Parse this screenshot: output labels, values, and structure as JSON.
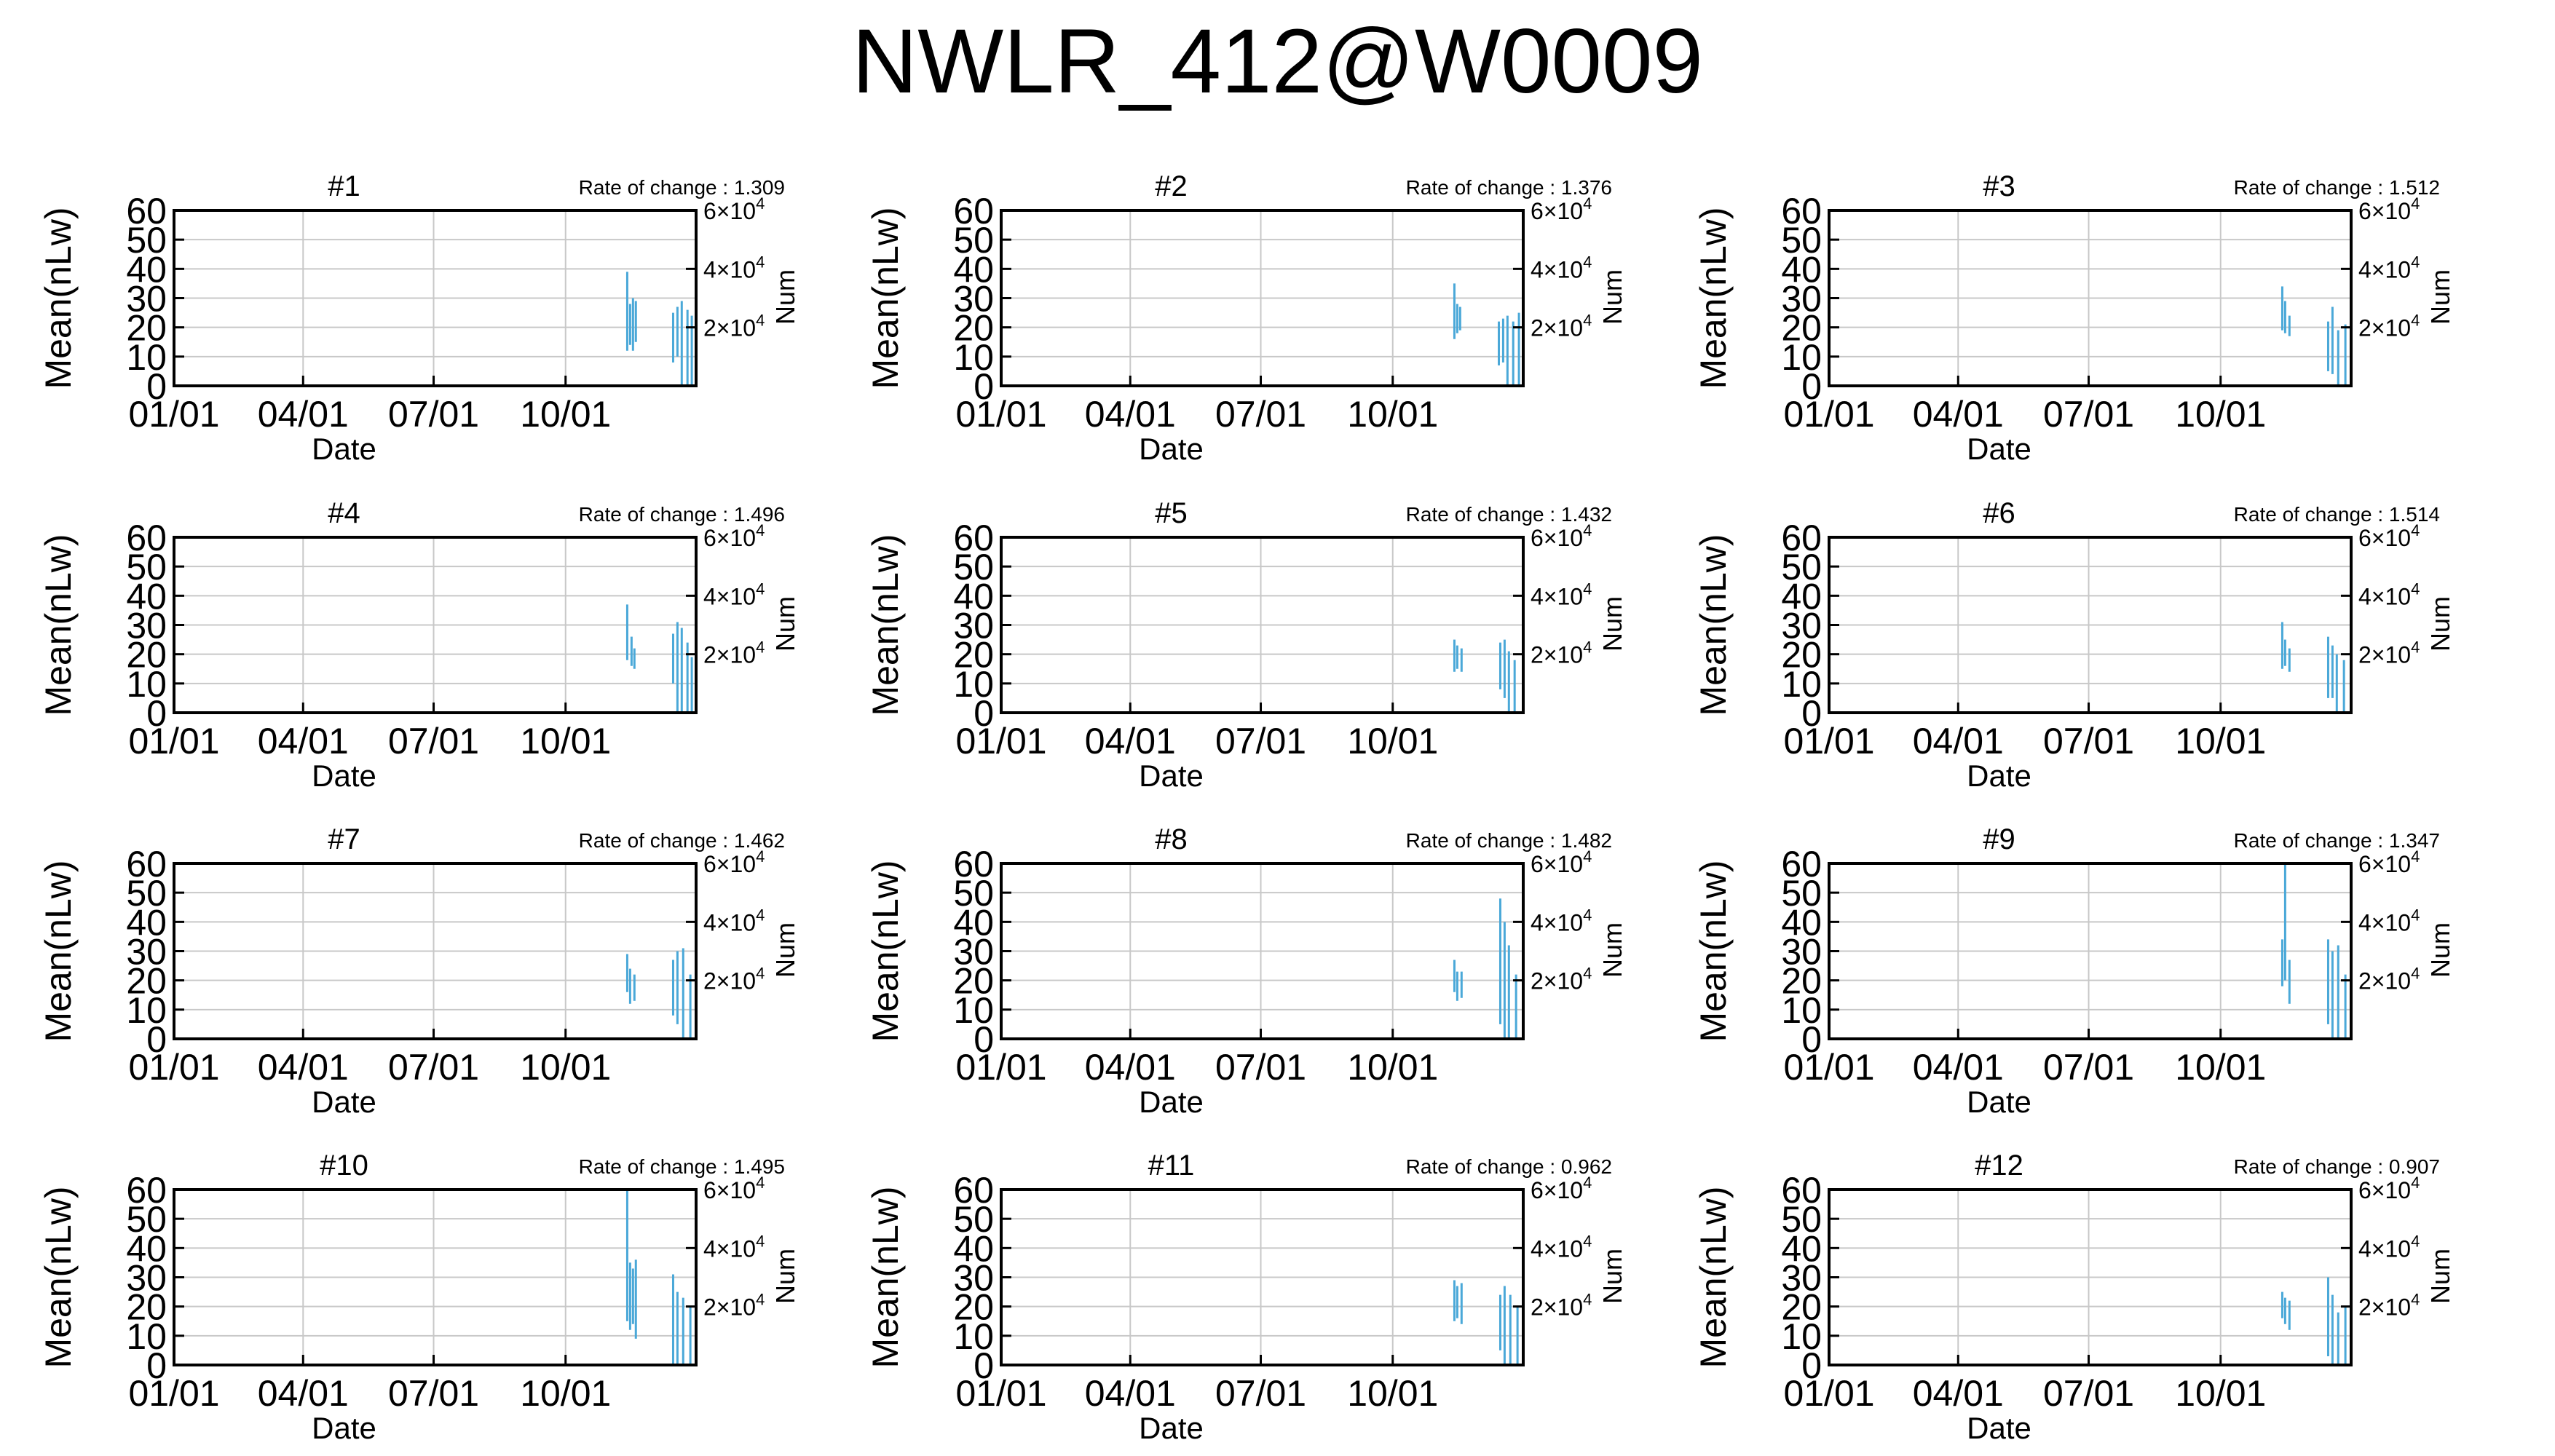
{
  "title": "NWLR_412@W0009",
  "colors": {
    "series": "#4aa8d8",
    "grid": "#c8c8c8",
    "axis": "#000000"
  },
  "chart_data": [
    {
      "type": "bar",
      "title": "#1",
      "rate_label": "Rate of change : 1.309",
      "xlabel": "Date",
      "ylabel": "Mean(nLw)",
      "y2label": "Num",
      "xlim": [
        "01/01",
        "12/31"
      ],
      "xticks": [
        "01/01",
        "04/01",
        "07/01",
        "10/01"
      ],
      "ylim": [
        0,
        60
      ],
      "yticks": [
        "0",
        "10",
        "20",
        "30",
        "40",
        "50",
        "60"
      ],
      "y2ticks": [
        {
          "base": "2×10",
          "exp": "4",
          "value": 20000
        },
        {
          "base": "4×10",
          "exp": "4",
          "value": 40000
        },
        {
          "base": "6×10",
          "exp": "4",
          "value": 60000
        }
      ],
      "y2lim": [
        0,
        60000
      ],
      "grid": true,
      "segments": [
        {
          "x": "2019-11-13",
          "low": 12,
          "high": 39
        },
        {
          "x": "2019-11-15",
          "low": 14,
          "high": 28
        },
        {
          "x": "2019-11-17",
          "low": 12,
          "high": 30
        },
        {
          "x": "2019-11-19",
          "low": 15,
          "high": 29
        },
        {
          "x": "2019-12-15",
          "low": 8,
          "high": 25
        },
        {
          "x": "2019-12-18",
          "low": 10,
          "high": 27
        },
        {
          "x": "2019-12-21",
          "low": 0,
          "high": 29
        },
        {
          "x": "2019-12-25",
          "low": 0,
          "high": 26
        },
        {
          "x": "2019-12-28",
          "low": 0,
          "high": 24
        }
      ]
    },
    {
      "type": "bar",
      "title": "#2",
      "rate_label": "Rate of change : 1.376",
      "xlabel": "Date",
      "ylabel": "Mean(nLw)",
      "y2label": "Num",
      "xlim": [
        "01/01",
        "12/31"
      ],
      "xticks": [
        "01/01",
        "04/01",
        "07/01",
        "10/01"
      ],
      "ylim": [
        0,
        60
      ],
      "yticks": [
        "0",
        "10",
        "20",
        "30",
        "40",
        "50",
        "60"
      ],
      "y2ticks": [
        {
          "base": "2×10",
          "exp": "4",
          "value": 20000
        },
        {
          "base": "4×10",
          "exp": "4",
          "value": 40000
        },
        {
          "base": "6×10",
          "exp": "4",
          "value": 60000
        }
      ],
      "y2lim": [
        0,
        60000
      ],
      "grid": true,
      "segments": [
        {
          "x": "2019-11-13",
          "low": 16,
          "high": 35
        },
        {
          "x": "2019-11-15",
          "low": 18,
          "high": 28
        },
        {
          "x": "2019-11-17",
          "low": 19,
          "high": 27
        },
        {
          "x": "2019-12-14",
          "low": 7,
          "high": 22
        },
        {
          "x": "2019-12-17",
          "low": 8,
          "high": 23
        },
        {
          "x": "2019-12-20",
          "low": 0,
          "high": 24
        },
        {
          "x": "2019-12-24",
          "low": 0,
          "high": 22
        },
        {
          "x": "2019-12-28",
          "low": 0,
          "high": 25
        }
      ]
    },
    {
      "type": "bar",
      "title": "#3",
      "rate_label": "Rate of change : 1.512",
      "xlabel": "Date",
      "ylabel": "Mean(nLw)",
      "y2label": "Num",
      "xlim": [
        "01/01",
        "12/31"
      ],
      "xticks": [
        "01/01",
        "04/01",
        "07/01",
        "10/01"
      ],
      "ylim": [
        0,
        60
      ],
      "yticks": [
        "0",
        "10",
        "20",
        "30",
        "40",
        "50",
        "60"
      ],
      "y2ticks": [
        {
          "base": "2×10",
          "exp": "4",
          "value": 20000
        },
        {
          "base": "4×10",
          "exp": "4",
          "value": 40000
        },
        {
          "base": "6×10",
          "exp": "4",
          "value": 60000
        }
      ],
      "y2lim": [
        0,
        60000
      ],
      "grid": true,
      "segments": [
        {
          "x": "2019-11-13",
          "low": 19,
          "high": 34
        },
        {
          "x": "2019-11-15",
          "low": 18,
          "high": 29
        },
        {
          "x": "2019-11-18",
          "low": 17,
          "high": 24
        },
        {
          "x": "2019-12-15",
          "low": 5,
          "high": 22
        },
        {
          "x": "2019-12-18",
          "low": 4,
          "high": 27
        },
        {
          "x": "2019-12-22",
          "low": 0,
          "high": 19
        },
        {
          "x": "2019-12-27",
          "low": 0,
          "high": 21
        }
      ]
    },
    {
      "type": "bar",
      "title": "#4",
      "rate_label": "Rate of change : 1.496",
      "xlabel": "Date",
      "ylabel": "Mean(nLw)",
      "y2label": "Num",
      "xlim": [
        "01/01",
        "12/31"
      ],
      "xticks": [
        "01/01",
        "04/01",
        "07/01",
        "10/01"
      ],
      "ylim": [
        0,
        60
      ],
      "yticks": [
        "0",
        "10",
        "20",
        "30",
        "40",
        "50",
        "60"
      ],
      "y2ticks": [
        {
          "base": "2×10",
          "exp": "4",
          "value": 20000
        },
        {
          "base": "4×10",
          "exp": "4",
          "value": 40000
        },
        {
          "base": "6×10",
          "exp": "4",
          "value": 60000
        }
      ],
      "y2lim": [
        0,
        60000
      ],
      "grid": true,
      "segments": [
        {
          "x": "2019-11-13",
          "low": 18,
          "high": 37
        },
        {
          "x": "2019-11-16",
          "low": 16,
          "high": 26
        },
        {
          "x": "2019-11-18",
          "low": 15,
          "high": 22
        },
        {
          "x": "2019-12-15",
          "low": 10,
          "high": 27
        },
        {
          "x": "2019-12-18",
          "low": 0,
          "high": 31
        },
        {
          "x": "2019-12-21",
          "low": 0,
          "high": 29
        },
        {
          "x": "2019-12-25",
          "low": 0,
          "high": 24
        },
        {
          "x": "2019-12-28",
          "low": 0,
          "high": 19
        }
      ]
    },
    {
      "type": "bar",
      "title": "#5",
      "rate_label": "Rate of change : 1.432",
      "xlabel": "Date",
      "ylabel": "Mean(nLw)",
      "y2label": "Num",
      "xlim": [
        "01/01",
        "12/31"
      ],
      "xticks": [
        "01/01",
        "04/01",
        "07/01",
        "10/01"
      ],
      "ylim": [
        0,
        60
      ],
      "yticks": [
        "0",
        "10",
        "20",
        "30",
        "40",
        "50",
        "60"
      ],
      "y2ticks": [
        {
          "base": "2×10",
          "exp": "4",
          "value": 20000
        },
        {
          "base": "4×10",
          "exp": "4",
          "value": 40000
        },
        {
          "base": "6×10",
          "exp": "4",
          "value": 60000
        }
      ],
      "y2lim": [
        0,
        60000
      ],
      "grid": true,
      "segments": [
        {
          "x": "2019-11-13",
          "low": 14,
          "high": 25
        },
        {
          "x": "2019-11-15",
          "low": 15,
          "high": 23
        },
        {
          "x": "2019-11-18",
          "low": 14,
          "high": 22
        },
        {
          "x": "2019-12-15",
          "low": 8,
          "high": 24
        },
        {
          "x": "2019-12-18",
          "low": 5,
          "high": 25
        },
        {
          "x": "2019-12-21",
          "low": 0,
          "high": 21
        },
        {
          "x": "2019-12-25",
          "low": 0,
          "high": 18
        }
      ]
    },
    {
      "type": "bar",
      "title": "#6",
      "rate_label": "Rate of change : 1.514",
      "xlabel": "Date",
      "ylabel": "Mean(nLw)",
      "y2label": "Num",
      "xlim": [
        "01/01",
        "12/31"
      ],
      "xticks": [
        "01/01",
        "04/01",
        "07/01",
        "10/01"
      ],
      "ylim": [
        0,
        60
      ],
      "yticks": [
        "0",
        "10",
        "20",
        "30",
        "40",
        "50",
        "60"
      ],
      "y2ticks": [
        {
          "base": "2×10",
          "exp": "4",
          "value": 20000
        },
        {
          "base": "4×10",
          "exp": "4",
          "value": 40000
        },
        {
          "base": "6×10",
          "exp": "4",
          "value": 60000
        }
      ],
      "y2lim": [
        0,
        60000
      ],
      "grid": true,
      "segments": [
        {
          "x": "2019-11-13",
          "low": 15,
          "high": 31
        },
        {
          "x": "2019-11-15",
          "low": 16,
          "high": 25
        },
        {
          "x": "2019-11-18",
          "low": 14,
          "high": 22
        },
        {
          "x": "2019-12-15",
          "low": 5,
          "high": 26
        },
        {
          "x": "2019-12-18",
          "low": 5,
          "high": 23
        },
        {
          "x": "2019-12-21",
          "low": 0,
          "high": 20
        },
        {
          "x": "2019-12-26",
          "low": 0,
          "high": 18
        }
      ]
    },
    {
      "type": "bar",
      "title": "#7",
      "rate_label": "Rate of change : 1.462",
      "xlabel": "Date",
      "ylabel": "Mean(nLw)",
      "y2label": "Num",
      "xlim": [
        "01/01",
        "12/31"
      ],
      "xticks": [
        "01/01",
        "04/01",
        "07/01",
        "10/01"
      ],
      "ylim": [
        0,
        60
      ],
      "yticks": [
        "0",
        "10",
        "20",
        "30",
        "40",
        "50",
        "60"
      ],
      "y2ticks": [
        {
          "base": "2×10",
          "exp": "4",
          "value": 20000
        },
        {
          "base": "4×10",
          "exp": "4",
          "value": 40000
        },
        {
          "base": "6×10",
          "exp": "4",
          "value": 60000
        }
      ],
      "y2lim": [
        0,
        60000
      ],
      "grid": true,
      "segments": [
        {
          "x": "2019-11-13",
          "low": 16,
          "high": 29
        },
        {
          "x": "2019-11-15",
          "low": 12,
          "high": 24
        },
        {
          "x": "2019-11-18",
          "low": 13,
          "high": 22
        },
        {
          "x": "2019-12-15",
          "low": 8,
          "high": 27
        },
        {
          "x": "2019-12-18",
          "low": 5,
          "high": 30
        },
        {
          "x": "2019-12-22",
          "low": 0,
          "high": 31
        },
        {
          "x": "2019-12-27",
          "low": 0,
          "high": 22
        }
      ]
    },
    {
      "type": "bar",
      "title": "#8",
      "rate_label": "Rate of change : 1.482",
      "xlabel": "Date",
      "ylabel": "Mean(nLw)",
      "y2label": "Num",
      "xlim": [
        "01/01",
        "12/31"
      ],
      "xticks": [
        "01/01",
        "04/01",
        "07/01",
        "10/01"
      ],
      "ylim": [
        0,
        60
      ],
      "yticks": [
        "0",
        "10",
        "20",
        "30",
        "40",
        "50",
        "60"
      ],
      "y2ticks": [
        {
          "base": "2×10",
          "exp": "4",
          "value": 20000
        },
        {
          "base": "4×10",
          "exp": "4",
          "value": 40000
        },
        {
          "base": "6×10",
          "exp": "4",
          "value": 60000
        }
      ],
      "y2lim": [
        0,
        60000
      ],
      "grid": true,
      "segments": [
        {
          "x": "2019-11-13",
          "low": 16,
          "high": 27
        },
        {
          "x": "2019-11-15",
          "low": 13,
          "high": 23
        },
        {
          "x": "2019-11-18",
          "low": 14,
          "high": 23
        },
        {
          "x": "2019-12-15",
          "low": 5,
          "high": 48
        },
        {
          "x": "2019-12-18",
          "low": 0,
          "high": 40
        },
        {
          "x": "2019-12-21",
          "low": 0,
          "high": 32
        },
        {
          "x": "2019-12-26",
          "low": 0,
          "high": 22
        }
      ]
    },
    {
      "type": "bar",
      "title": "#9",
      "rate_label": "Rate of change : 1.347",
      "xlabel": "Date",
      "ylabel": "Mean(nLw)",
      "y2label": "Num",
      "xlim": [
        "01/01",
        "12/31"
      ],
      "xticks": [
        "01/01",
        "04/01",
        "07/01",
        "10/01"
      ],
      "ylim": [
        0,
        60
      ],
      "yticks": [
        "0",
        "10",
        "20",
        "30",
        "40",
        "50",
        "60"
      ],
      "y2ticks": [
        {
          "base": "2×10",
          "exp": "4",
          "value": 20000
        },
        {
          "base": "4×10",
          "exp": "4",
          "value": 40000
        },
        {
          "base": "6×10",
          "exp": "4",
          "value": 60000
        }
      ],
      "y2lim": [
        0,
        60000
      ],
      "grid": true,
      "segments": [
        {
          "x": "2019-11-13",
          "low": 18,
          "high": 34
        },
        {
          "x": "2019-11-15",
          "low": 20,
          "high": 60
        },
        {
          "x": "2019-11-18",
          "low": 12,
          "high": 27
        },
        {
          "x": "2019-12-15",
          "low": 5,
          "high": 34
        },
        {
          "x": "2019-12-18",
          "low": 0,
          "high": 30
        },
        {
          "x": "2019-12-22",
          "low": 0,
          "high": 32
        },
        {
          "x": "2019-12-27",
          "low": 0,
          "high": 22
        }
      ]
    },
    {
      "type": "bar",
      "title": "#10",
      "rate_label": "Rate of change : 1.495",
      "xlabel": "Date",
      "ylabel": "Mean(nLw)",
      "y2label": "Num",
      "xlim": [
        "01/01",
        "12/31"
      ],
      "xticks": [
        "01/01",
        "04/01",
        "07/01",
        "10/01"
      ],
      "ylim": [
        0,
        60
      ],
      "yticks": [
        "0",
        "10",
        "20",
        "30",
        "40",
        "50",
        "60"
      ],
      "y2ticks": [
        {
          "base": "2×10",
          "exp": "4",
          "value": 20000
        },
        {
          "base": "4×10",
          "exp": "4",
          "value": 40000
        },
        {
          "base": "6×10",
          "exp": "4",
          "value": 60000
        }
      ],
      "y2lim": [
        0,
        60000
      ],
      "grid": true,
      "segments": [
        {
          "x": "2019-11-13",
          "low": 15,
          "high": 60
        },
        {
          "x": "2019-11-15",
          "low": 12,
          "high": 35
        },
        {
          "x": "2019-11-17",
          "low": 14,
          "high": 33
        },
        {
          "x": "2019-11-19",
          "low": 9,
          "high": 36
        },
        {
          "x": "2019-12-15",
          "low": 0,
          "high": 31
        },
        {
          "x": "2019-12-18",
          "low": 0,
          "high": 25
        },
        {
          "x": "2019-12-22",
          "low": 0,
          "high": 23
        },
        {
          "x": "2019-12-27",
          "low": 0,
          "high": 20
        }
      ]
    },
    {
      "type": "bar",
      "title": "#11",
      "rate_label": "Rate of change : 0.962",
      "xlabel": "Date",
      "ylabel": "Mean(nLw)",
      "y2label": "Num",
      "xlim": [
        "01/01",
        "12/31"
      ],
      "xticks": [
        "01/01",
        "04/01",
        "07/01",
        "10/01"
      ],
      "ylim": [
        0,
        60
      ],
      "yticks": [
        "0",
        "10",
        "20",
        "30",
        "40",
        "50",
        "60"
      ],
      "y2ticks": [
        {
          "base": "2×10",
          "exp": "4",
          "value": 20000
        },
        {
          "base": "4×10",
          "exp": "4",
          "value": 40000
        },
        {
          "base": "6×10",
          "exp": "4",
          "value": 60000
        }
      ],
      "y2lim": [
        0,
        60000
      ],
      "grid": true,
      "segments": [
        {
          "x": "2019-11-13",
          "low": 15,
          "high": 29
        },
        {
          "x": "2019-11-15",
          "low": 16,
          "high": 27
        },
        {
          "x": "2019-11-18",
          "low": 14,
          "high": 28
        },
        {
          "x": "2019-12-15",
          "low": 5,
          "high": 24
        },
        {
          "x": "2019-12-18",
          "low": 0,
          "high": 27
        },
        {
          "x": "2019-12-22",
          "low": 0,
          "high": 24
        },
        {
          "x": "2019-12-27",
          "low": 0,
          "high": 20
        }
      ]
    },
    {
      "type": "bar",
      "title": "#12",
      "rate_label": "Rate of change : 0.907",
      "xlabel": "Date",
      "ylabel": "Mean(nLw)",
      "y2label": "Num",
      "xlim": [
        "01/01",
        "12/31"
      ],
      "xticks": [
        "01/01",
        "04/01",
        "07/01",
        "10/01"
      ],
      "ylim": [
        0,
        60
      ],
      "yticks": [
        "0",
        "10",
        "20",
        "30",
        "40",
        "50",
        "60"
      ],
      "y2ticks": [
        {
          "base": "2×10",
          "exp": "4",
          "value": 20000
        },
        {
          "base": "4×10",
          "exp": "4",
          "value": 40000
        },
        {
          "base": "6×10",
          "exp": "4",
          "value": 60000
        }
      ],
      "y2lim": [
        0,
        60000
      ],
      "grid": true,
      "segments": [
        {
          "x": "2019-11-13",
          "low": 16,
          "high": 25
        },
        {
          "x": "2019-11-15",
          "low": 14,
          "high": 23
        },
        {
          "x": "2019-11-18",
          "low": 12,
          "high": 22
        },
        {
          "x": "2019-12-15",
          "low": 3,
          "high": 30
        },
        {
          "x": "2019-12-18",
          "low": 0,
          "high": 24
        },
        {
          "x": "2019-12-22",
          "low": 0,
          "high": 18
        },
        {
          "x": "2019-12-27",
          "low": 0,
          "high": 20
        }
      ]
    }
  ]
}
